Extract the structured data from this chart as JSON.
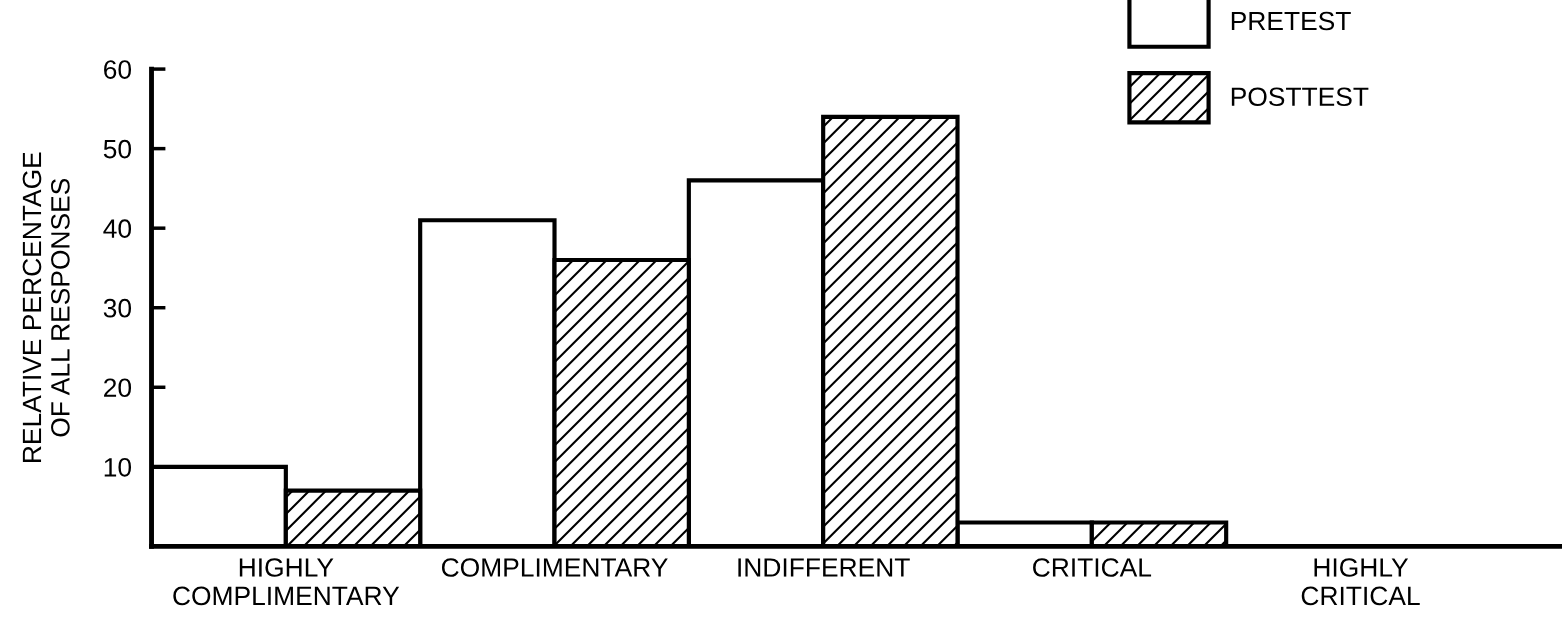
{
  "chart_data": {
    "type": "bar",
    "ylabel": "RELATIVE PERCENTAGE\nOF ALL RESPONSES",
    "categories": [
      "HIGHLY\nCOMPLIMENTARY",
      "COMPLIMENTARY",
      "INDIFFERENT",
      "CRITICAL",
      "HIGHLY\nCRITICAL"
    ],
    "series": [
      {
        "name": "PRETEST",
        "color": "#ffffff",
        "values": [
          10,
          41,
          46,
          3,
          0
        ]
      },
      {
        "name": "POSTTEST",
        "color": "#000000",
        "values": [
          7,
          36,
          54,
          3,
          0
        ]
      }
    ],
    "ylim": [
      0,
      60
    ],
    "yticks": [
      10,
      20,
      30,
      40,
      50,
      60
    ],
    "grid": false,
    "legend": "top right"
  }
}
